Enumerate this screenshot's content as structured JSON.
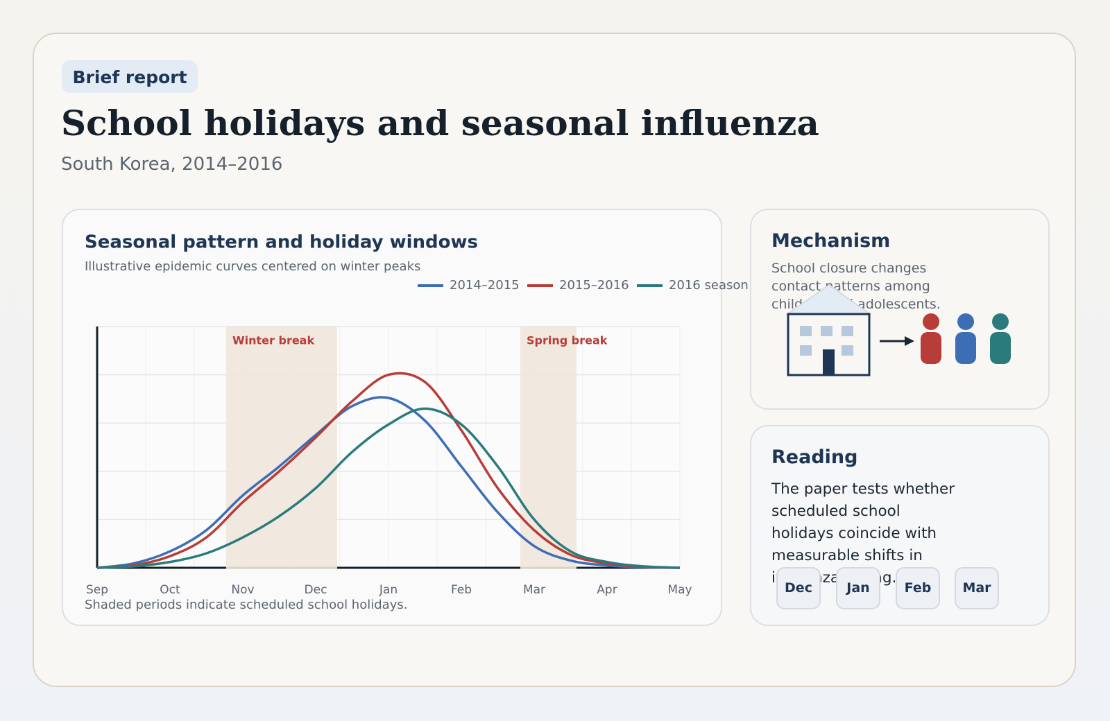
{
  "badge": "Brief report",
  "title": "School holidays and seasonal influenza",
  "subtitle": "South Korea, 2014–2016",
  "chart_data": {
    "type": "line",
    "title": "Seasonal pattern and holiday windows",
    "subtitle": "Illustrative epidemic curves centered on winter peaks",
    "note": "Shaded periods indicate scheduled school holidays.",
    "annotations": [
      "Winter break",
      "Spring break"
    ],
    "categories": [
      "Sep",
      null,
      "Oct",
      null,
      "Nov",
      null,
      "Dec",
      null,
      "Jan",
      null,
      "Feb",
      null,
      "Mar",
      null,
      "Apr",
      null,
      "May"
    ],
    "ylim": [
      0,
      5
    ],
    "grid": true,
    "series": [
      {
        "name": "2014–2015",
        "color": "#3d6db5",
        "values": [
          0,
          0.09,
          0.34,
          0.78,
          1.5,
          2.1,
          2.75,
          3.35,
          3.52,
          3.05,
          2.1,
          1.15,
          0.45,
          0.15,
          0.05,
          0.01,
          0
        ]
      },
      {
        "name": "2015–2016",
        "color": "#b83c38",
        "values": [
          0,
          0.05,
          0.24,
          0.63,
          1.36,
          2.0,
          2.7,
          3.45,
          4.0,
          3.85,
          2.85,
          1.65,
          0.78,
          0.27,
          0.09,
          0.02,
          0
        ]
      },
      {
        "name": "2016 season",
        "color": "#2a7b7b",
        "values": [
          0,
          0.03,
          0.12,
          0.3,
          0.63,
          1.07,
          1.65,
          2.4,
          2.97,
          3.3,
          2.97,
          2.1,
          1.0,
          0.34,
          0.12,
          0.03,
          0
        ]
      }
    ]
  },
  "mechanism": {
    "title": "Mechanism",
    "text": "School closure changes contact patterns among children and adolescents."
  },
  "reading": {
    "title": "Reading",
    "text": "The paper tests whether scheduled school holidays coincide with measurable shifts in influenza timing.",
    "months": [
      "Dec",
      "Jan",
      "Feb",
      "Mar"
    ]
  }
}
